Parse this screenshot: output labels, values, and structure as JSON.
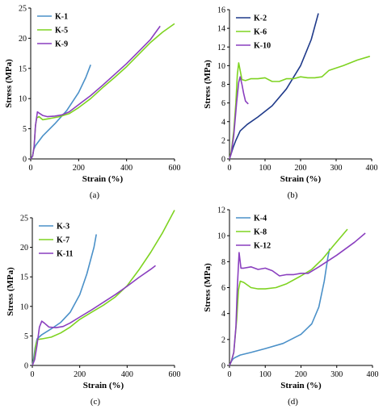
{
  "chart_data": [
    {
      "type": "line",
      "caption": "(a)",
      "xlabel": "Strain (%)",
      "ylabel": "Stress (MPa)",
      "xlim": [
        0,
        600
      ],
      "ylim": [
        0,
        25
      ],
      "xticks": [
        0,
        200,
        400,
        600
      ],
      "yticks": [
        0,
        5,
        10,
        15,
        20,
        25
      ],
      "grid": false,
      "legend_position": "top-left",
      "series": [
        {
          "name": "K-1",
          "color": "#4a90c8",
          "points": [
            [
              0,
              0
            ],
            [
              8,
              0.5
            ],
            [
              12,
              1.5
            ],
            [
              20,
              2.2
            ],
            [
              50,
              3.8
            ],
            [
              100,
              5.8
            ],
            [
              150,
              8
            ],
            [
              200,
              11
            ],
            [
              230,
              13.5
            ],
            [
              250,
              15.6
            ]
          ]
        },
        {
          "name": "K-5",
          "color": "#7ed321",
          "points": [
            [
              0,
              0
            ],
            [
              8,
              0.5
            ],
            [
              14,
              2
            ],
            [
              20,
              5.5
            ],
            [
              25,
              6.8
            ],
            [
              35,
              7
            ],
            [
              50,
              6.5
            ],
            [
              80,
              6.7
            ],
            [
              120,
              7
            ],
            [
              160,
              7.5
            ],
            [
              200,
              8.5
            ],
            [
              250,
              10
            ],
            [
              300,
              11.8
            ],
            [
              350,
              13.5
            ],
            [
              400,
              15.3
            ],
            [
              450,
              17.3
            ],
            [
              500,
              19.3
            ],
            [
              550,
              21
            ],
            [
              600,
              22.4
            ]
          ]
        },
        {
          "name": "K-9",
          "color": "#8a3fbf",
          "points": [
            [
              0,
              0
            ],
            [
              8,
              0.5
            ],
            [
              14,
              2
            ],
            [
              20,
              5.5
            ],
            [
              28,
              7.8
            ],
            [
              35,
              7.6
            ],
            [
              50,
              7.2
            ],
            [
              70,
              7
            ],
            [
              100,
              7.1
            ],
            [
              130,
              7.3
            ],
            [
              160,
              7.8
            ],
            [
              200,
              9
            ],
            [
              250,
              10.5
            ],
            [
              300,
              12.2
            ],
            [
              350,
              14
            ],
            [
              400,
              15.8
            ],
            [
              450,
              17.8
            ],
            [
              500,
              19.8
            ],
            [
              540,
              22
            ]
          ]
        }
      ]
    },
    {
      "type": "line",
      "caption": "(b)",
      "xlabel": "Strain (%)",
      "ylabel": "Stress (MPa)",
      "xlim": [
        0,
        400
      ],
      "ylim": [
        0,
        16
      ],
      "xticks": [
        0,
        100,
        200,
        300,
        400
      ],
      "yticks": [
        0,
        2,
        4,
        6,
        8,
        10,
        12,
        14,
        16
      ],
      "grid": false,
      "legend_position": "top-left",
      "series": [
        {
          "name": "K-2",
          "color": "#1f3a8a",
          "points": [
            [
              0,
              0
            ],
            [
              5,
              0.6
            ],
            [
              10,
              1.2
            ],
            [
              18,
              2
            ],
            [
              30,
              3
            ],
            [
              50,
              3.7
            ],
            [
              80,
              4.5
            ],
            [
              120,
              5.7
            ],
            [
              160,
              7.5
            ],
            [
              200,
              10
            ],
            [
              230,
              12.8
            ],
            [
              250,
              15.6
            ]
          ]
        },
        {
          "name": "K-6",
          "color": "#7ed321",
          "points": [
            [
              0,
              0
            ],
            [
              5,
              0.8
            ],
            [
              12,
              3
            ],
            [
              18,
              6
            ],
            [
              22,
              9
            ],
            [
              26,
              10.3
            ],
            [
              30,
              9.5
            ],
            [
              35,
              8.5
            ],
            [
              45,
              8.4
            ],
            [
              60,
              8.6
            ],
            [
              80,
              8.6
            ],
            [
              100,
              8.7
            ],
            [
              120,
              8.3
            ],
            [
              140,
              8.3
            ],
            [
              160,
              8.6
            ],
            [
              180,
              8.6
            ],
            [
              200,
              8.8
            ],
            [
              220,
              8.7
            ],
            [
              240,
              8.7
            ],
            [
              260,
              8.8
            ],
            [
              280,
              9.5
            ],
            [
              320,
              10
            ],
            [
              360,
              10.6
            ],
            [
              395,
              11
            ]
          ]
        },
        {
          "name": "K-10",
          "color": "#8a3fbf",
          "points": [
            [
              0,
              0
            ],
            [
              5,
              0.6
            ],
            [
              12,
              2.5
            ],
            [
              20,
              6
            ],
            [
              26,
              8.2
            ],
            [
              30,
              8.8
            ],
            [
              35,
              8
            ],
            [
              40,
              7
            ],
            [
              45,
              6.2
            ],
            [
              50,
              6
            ],
            [
              53,
              5.9
            ]
          ]
        }
      ]
    },
    {
      "type": "line",
      "caption": "(c)",
      "xlabel": "Strain (%)",
      "ylabel": "Stress (MPa)",
      "xlim": [
        0,
        600
      ],
      "ylim": [
        0,
        25
      ],
      "xticks": [
        0,
        200,
        400,
        600
      ],
      "yticks": [
        0,
        5,
        10,
        15,
        20,
        25
      ],
      "grid": false,
      "legend_position": "top-left",
      "series": [
        {
          "name": "K-3",
          "color": "#4a90c8",
          "points": [
            [
              0,
              0
            ],
            [
              5,
              1
            ],
            [
              12,
              3
            ],
            [
              20,
              4.5
            ],
            [
              40,
              5.2
            ],
            [
              80,
              6.2
            ],
            [
              120,
              7.3
            ],
            [
              160,
              9
            ],
            [
              200,
              12
            ],
            [
              230,
              15.5
            ],
            [
              260,
              20
            ],
            [
              270,
              22.2
            ]
          ]
        },
        {
          "name": "K-7",
          "color": "#7ed321",
          "points": [
            [
              0,
              0
            ],
            [
              8,
              1
            ],
            [
              15,
              3.5
            ],
            [
              22,
              4.4
            ],
            [
              40,
              4.5
            ],
            [
              80,
              4.8
            ],
            [
              120,
              5.5
            ],
            [
              160,
              6.5
            ],
            [
              200,
              7.8
            ],
            [
              250,
              9
            ],
            [
              300,
              10.2
            ],
            [
              350,
              11.6
            ],
            [
              400,
              13.5
            ],
            [
              450,
              16.2
            ],
            [
              500,
              19.2
            ],
            [
              550,
              22.5
            ],
            [
              600,
              26.3
            ]
          ]
        },
        {
          "name": "K-11",
          "color": "#8a3fbf",
          "points": [
            [
              0,
              0
            ],
            [
              10,
              1
            ],
            [
              20,
              3.5
            ],
            [
              30,
              6.5
            ],
            [
              40,
              7.5
            ],
            [
              50,
              7.2
            ],
            [
              70,
              6.5
            ],
            [
              100,
              6.4
            ],
            [
              130,
              6.6
            ],
            [
              160,
              7.2
            ],
            [
              200,
              8.2
            ],
            [
              250,
              9.4
            ],
            [
              300,
              10.7
            ],
            [
              350,
              12
            ],
            [
              400,
              13.4
            ],
            [
              450,
              14.9
            ],
            [
              500,
              16.3
            ],
            [
              520,
              16.9
            ]
          ]
        }
      ]
    },
    {
      "type": "line",
      "caption": "(d)",
      "xlabel": "Strain (%)",
      "ylabel": "Stress (MPa)",
      "xlim": [
        0,
        400
      ],
      "ylim": [
        0,
        12
      ],
      "xticks": [
        0,
        100,
        200,
        300,
        400
      ],
      "yticks": [
        0,
        2,
        4,
        6,
        8,
        10,
        12
      ],
      "grid": false,
      "legend_position": "top-left",
      "series": [
        {
          "name": "K-4",
          "color": "#4a90c8",
          "points": [
            [
              0,
              0
            ],
            [
              5,
              0.3
            ],
            [
              10,
              0.5
            ],
            [
              15,
              0.6
            ],
            [
              30,
              0.8
            ],
            [
              60,
              1
            ],
            [
              100,
              1.3
            ],
            [
              150,
              1.7
            ],
            [
              200,
              2.4
            ],
            [
              230,
              3.2
            ],
            [
              250,
              4.5
            ],
            [
              265,
              6.5
            ],
            [
              275,
              8.3
            ],
            [
              280,
              9
            ]
          ]
        },
        {
          "name": "K-8",
          "color": "#7ed321",
          "points": [
            [
              0,
              0
            ],
            [
              5,
              0.3
            ],
            [
              12,
              1
            ],
            [
              20,
              3.5
            ],
            [
              25,
              5.8
            ],
            [
              30,
              6.5
            ],
            [
              40,
              6.4
            ],
            [
              60,
              6
            ],
            [
              80,
              5.9
            ],
            [
              100,
              5.9
            ],
            [
              130,
              6
            ],
            [
              160,
              6.3
            ],
            [
              200,
              6.9
            ],
            [
              230,
              7.4
            ],
            [
              260,
              8.2
            ],
            [
              290,
              9.2
            ],
            [
              330,
              10.5
            ]
          ]
        },
        {
          "name": "K-12",
          "color": "#8a3fbf",
          "points": [
            [
              0,
              0
            ],
            [
              5,
              0.3
            ],
            [
              12,
              1
            ],
            [
              18,
              3
            ],
            [
              22,
              6
            ],
            [
              27,
              8.7
            ],
            [
              32,
              7.5
            ],
            [
              40,
              7.5
            ],
            [
              60,
              7.6
            ],
            [
              80,
              7.4
            ],
            [
              100,
              7.5
            ],
            [
              120,
              7.3
            ],
            [
              140,
              6.9
            ],
            [
              160,
              7
            ],
            [
              180,
              7
            ],
            [
              200,
              7.1
            ],
            [
              220,
              7.1
            ],
            [
              250,
              7.6
            ],
            [
              300,
              8.5
            ],
            [
              350,
              9.5
            ],
            [
              380,
              10.2
            ]
          ]
        }
      ]
    }
  ]
}
